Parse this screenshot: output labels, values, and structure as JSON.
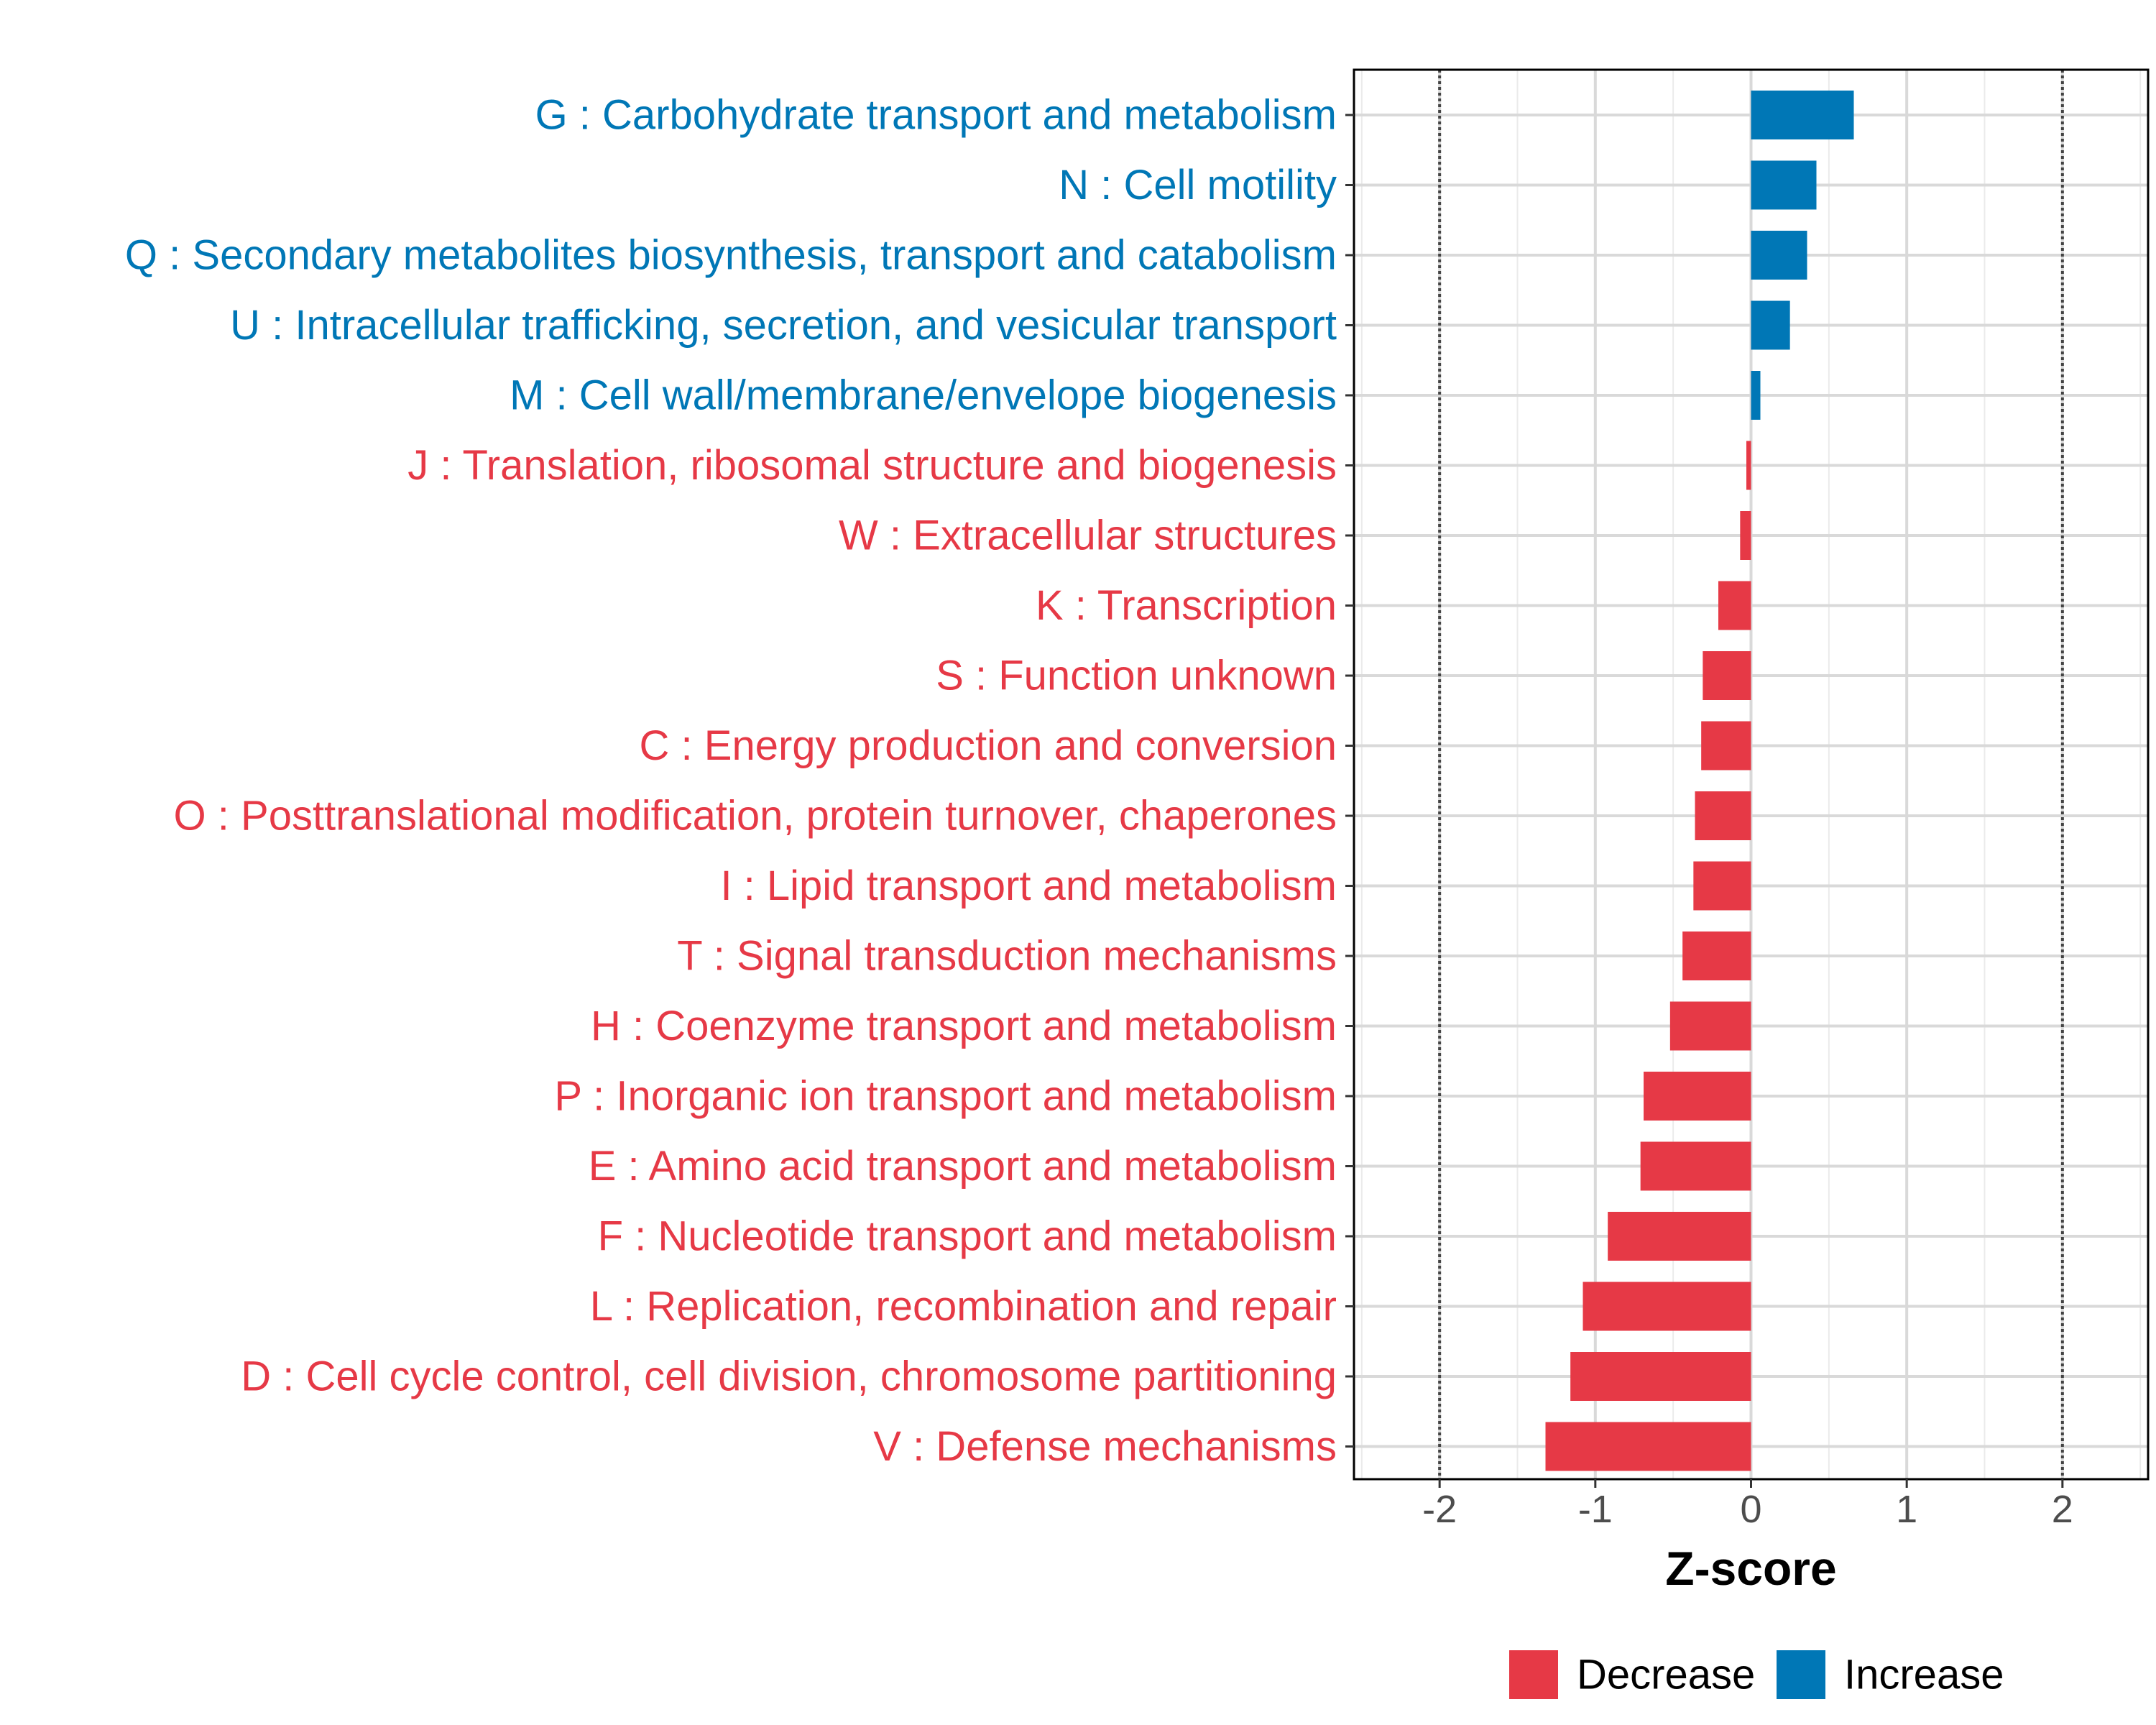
{
  "chart_data": {
    "type": "bar",
    "orientation": "horizontal",
    "xlabel": "Z-score",
    "xlim": [
      -2.55,
      2.55
    ],
    "xticks": [
      -2,
      -1,
      0,
      1,
      2
    ],
    "xtick_labels": [
      "-2",
      "-1",
      "0",
      "1",
      "2"
    ],
    "reference_lines": [
      -2,
      2
    ],
    "grid": true,
    "legend_position": "bottom-right",
    "legend": [
      {
        "key": "Decrease",
        "label": "Decrease",
        "color": "#E63946"
      },
      {
        "key": "Increase",
        "label": "Increase",
        "color": "#0077B6"
      }
    ],
    "categories": [
      "G : Carbohydrate transport and metabolism",
      "N : Cell motility",
      "Q : Secondary metabolites biosynthesis, transport and catabolism",
      "U : Intracellular trafficking, secretion, and vesicular transport",
      "M : Cell wall/membrane/envelope biogenesis",
      "J : Translation, ribosomal structure and biogenesis",
      "W : Extracellular structures",
      "K : Transcription",
      "S : Function unknown",
      "C : Energy production and conversion",
      "O : Posttranslational modification, protein turnover, chaperones",
      "I : Lipid transport and metabolism",
      "T : Signal transduction mechanisms",
      "H : Coenzyme transport and metabolism",
      "P : Inorganic ion transport and metabolism",
      "E : Amino acid transport and metabolism",
      "F : Nucleotide transport and metabolism",
      "L : Replication, recombination and repair",
      "D : Cell cycle control, cell division, chromosome partitioning",
      "V : Defense mechanisms"
    ],
    "values": [
      0.66,
      0.42,
      0.36,
      0.25,
      0.06,
      -0.03,
      -0.07,
      -0.21,
      -0.31,
      -0.32,
      -0.36,
      -0.37,
      -0.44,
      -0.52,
      -0.69,
      -0.71,
      -0.92,
      -1.08,
      -1.16,
      -1.32
    ],
    "direction": [
      "Increase",
      "Increase",
      "Increase",
      "Increase",
      "Increase",
      "Decrease",
      "Decrease",
      "Decrease",
      "Decrease",
      "Decrease",
      "Decrease",
      "Decrease",
      "Decrease",
      "Decrease",
      "Decrease",
      "Decrease",
      "Decrease",
      "Decrease",
      "Decrease",
      "Decrease"
    ]
  }
}
